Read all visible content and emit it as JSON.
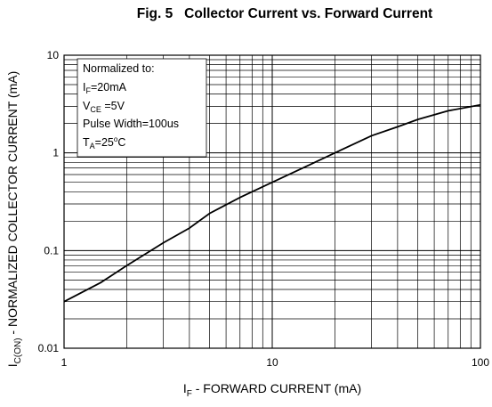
{
  "chart_data": {
    "type": "line",
    "title": "Fig. 5   Collector Current vs. Forward Current",
    "xscale": "log",
    "yscale": "log",
    "xlim": [
      1,
      100
    ],
    "ylim": [
      0.01,
      10
    ],
    "grid": true,
    "x_axis": {
      "label_main": "I",
      "label_sub": "F",
      "label_rest": " - FORWARD CURRENT (mA)",
      "tick_labels": [
        "1",
        "10",
        "100"
      ]
    },
    "y_axis": {
      "label_main": "I",
      "label_sub": "C(ON)",
      "label_rest": " - NORMALIZED COLLECTOR CURRENT (mA)",
      "tick_labels": [
        "0.01",
        "0.1",
        "1",
        "10"
      ]
    },
    "annotation": {
      "line1": "Normalized to:",
      "line2_main": "I",
      "line2_sub": "F",
      "line2_rest": "=20mA",
      "line3_main": "V",
      "line3_sub": "CE",
      "line3_rest": " =5V",
      "line4": "Pulse Width=100us",
      "line5_main": "T",
      "line5_sub": "A",
      "line5_rest": "=25",
      "line5_sup": "o",
      "line5_unit": "C"
    },
    "series": [
      {
        "x": [
          1,
          1.5,
          2,
          3,
          4,
          5,
          7,
          10,
          15,
          20,
          30,
          40,
          50,
          70,
          100
        ],
        "y": [
          0.03,
          0.047,
          0.07,
          0.12,
          0.17,
          0.24,
          0.35,
          0.5,
          0.75,
          1.0,
          1.5,
          1.85,
          2.2,
          2.7,
          3.1
        ]
      }
    ]
  }
}
